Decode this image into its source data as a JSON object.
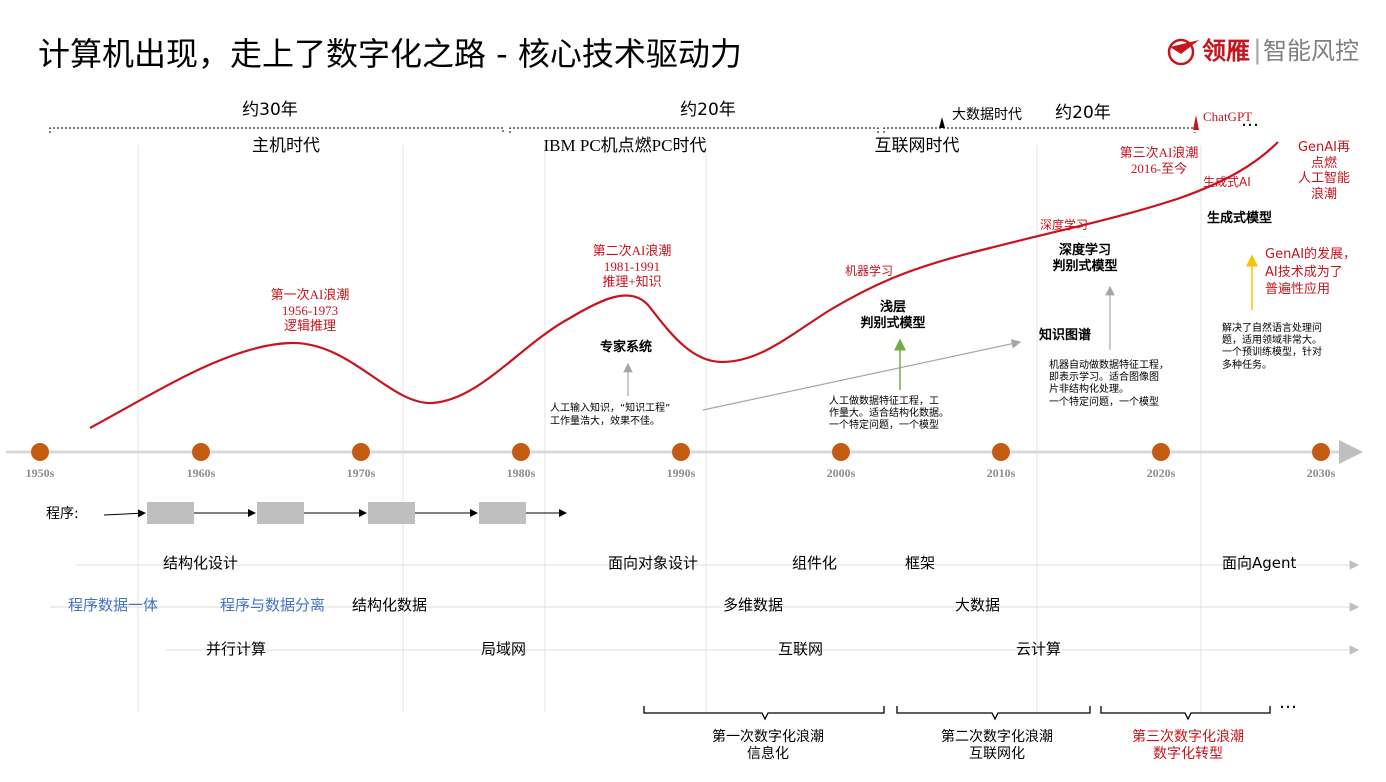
{
  "title": "计算机出现，走上了数字化之路 - 核心技术驱动力",
  "logo": {
    "brand": "领雁",
    "sep": "|",
    "product": "智能风控",
    "color": "#c8141c"
  },
  "eras": {
    "span1": "约30年",
    "span2": "约20年",
    "span3": "约20年",
    "mainframe": "主机时代",
    "pc": "IBM PC机点燃PC时代",
    "internet": "互联网时代",
    "bigdata": "大数据时代",
    "chatgpt": "ChatGPT",
    "ellipsis": "…"
  },
  "years": [
    "1950s",
    "1960s",
    "1970s",
    "1980s",
    "1990s",
    "2000s",
    "2010s",
    "2020s",
    "2030s"
  ],
  "ai_waves": {
    "wave1": {
      "name": "第一次AI浪潮",
      "years": "1956-1973",
      "topic": "逻辑推理"
    },
    "wave2": {
      "name": "第二次AI浪潮",
      "years": "1981-1991",
      "topic": "推理+知识"
    },
    "wave3": {
      "name": "第三次AI浪潮",
      "years": "2016-至今"
    },
    "genai_line1": "GenAI再点燃",
    "genai_line2": "人工智能浪潮",
    "ml": "机器学习",
    "dl": "深度学习",
    "gen": "生成式AI"
  },
  "models": {
    "expert": "专家系统",
    "shallow_line1": "浅层",
    "shallow_line2": "判别式模型",
    "kg": "知识图谱",
    "deep_line1": "深度学习",
    "deep_line2": "判别式模型",
    "generative": "生成式模型"
  },
  "notes": {
    "expert": [
      "人工输入知识，“知识工程”",
      "工作量浩大，效果不佳。"
    ],
    "shallow": [
      "人工做数据特征工程，工",
      "作量大。适合结构化数据。",
      "一个特定问题，一个模型"
    ],
    "deep": [
      "机器自动做数据特征工程，",
      "即表示学习。适合图像图",
      "片非结构化处理。",
      "一个特定问题，一个模型"
    ],
    "generative": [
      "解决了自然语言处理问",
      "题，适用领域非常大。",
      "一个预训练模型，针对",
      "多种任务。"
    ],
    "genai": [
      "GenAI的发展，",
      "AI技术成为了",
      "普遍性应用"
    ]
  },
  "program": {
    "label": "程序:"
  },
  "rows": {
    "design": [
      "结构化设计",
      "面向对象设计",
      "组件化",
      "框架",
      "面向Agent"
    ],
    "data": [
      "程序数据一体",
      "程序与数据分离",
      "结构化数据",
      "多维数据",
      "大数据"
    ],
    "compute": [
      "并行计算",
      "局域网",
      "互联网",
      "云计算"
    ]
  },
  "digital_waves": {
    "first": [
      "第一次数字化浪潮",
      "信息化"
    ],
    "second": [
      "第二次数字化浪潮",
      "互联网化"
    ],
    "third": [
      "第三次数字化浪潮",
      "数字化转型"
    ],
    "ellipsis": "…"
  },
  "colors": {
    "accent": "#c8141c",
    "dot": "#c55a11",
    "blue": "#4472c4",
    "green": "#70ad47",
    "yellow": "#ffc000",
    "grey": "#bfbfbf"
  }
}
